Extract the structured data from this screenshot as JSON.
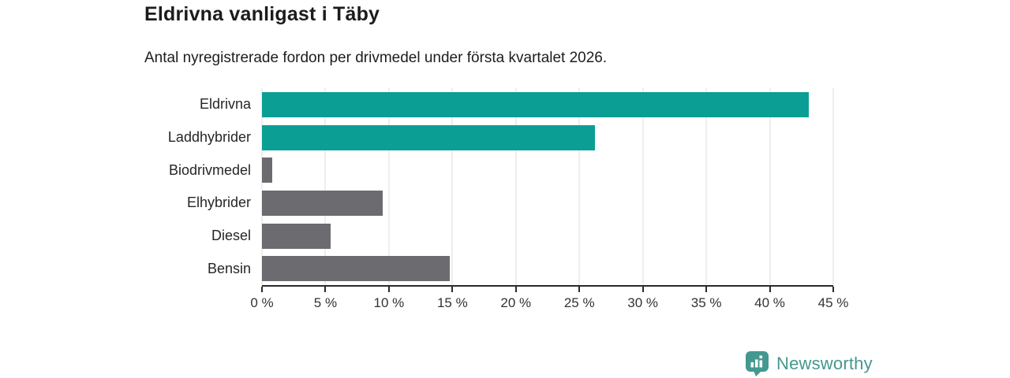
{
  "chart": {
    "title": "Eldrivna vanligast i Täby",
    "subtitle": "Antal nyregistrerade fordon per drivmedel under första kvartalet 2026."
  },
  "chart_data": {
    "type": "bar",
    "orientation": "horizontal",
    "title": "Eldrivna vanligast i Täby",
    "subtitle": "Antal nyregistrerade fordon per drivmedel under första kvartalet 2026.",
    "categories": [
      "Eldrivna",
      "Laddhybrider",
      "Biodrivmedel",
      "Elhybrider",
      "Diesel",
      "Bensin"
    ],
    "values": [
      43.1,
      26.2,
      0.8,
      9.5,
      5.4,
      14.8
    ],
    "unit": "%",
    "xlabel": "",
    "ylabel": "",
    "xlim": [
      0,
      45
    ],
    "ticks": [
      0,
      5,
      10,
      15,
      20,
      25,
      30,
      35,
      40,
      45
    ],
    "tick_label_suffix": " %",
    "bar_colors": [
      "#0b9e95",
      "#0b9e95",
      "#6b6b70",
      "#6b6b70",
      "#6b6b70",
      "#6b6b70"
    ],
    "grid": true,
    "legend": "none"
  },
  "colors": {
    "accent_teal": "#0b9e95",
    "neutral_gray": "#6b6b70",
    "gridline": "#dcdcdc",
    "axis": "#2b2b2b",
    "text": "#1d1d1d",
    "brand": "#44988f"
  },
  "footer": {
    "brand": "Newsworthy"
  }
}
